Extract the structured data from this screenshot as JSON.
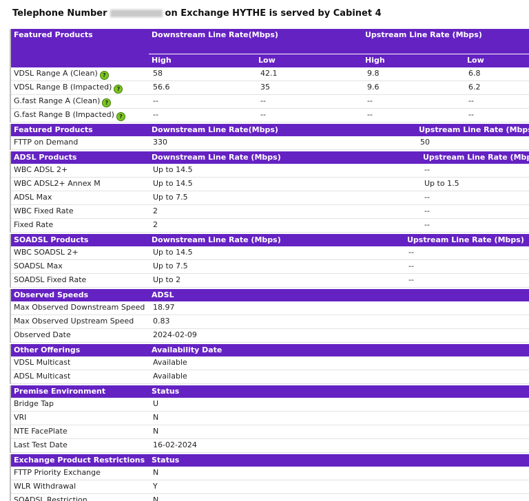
{
  "title": {
    "prefix": "Telephone Number",
    "suffix": "on Exchange HYTHE is served by Cabinet 4"
  },
  "sections": [
    {
      "header": [
        "Featured Products",
        "Downstream Line Rate(Mbps)",
        "Upstream Line Rate (Mbps)"
      ],
      "subheader": [
        "High",
        "Low",
        "High",
        "Low"
      ],
      "rows": [
        [
          "VDSL Range A (Clean)",
          "58",
          "42.1",
          "9.8",
          "6.8"
        ],
        [
          "VDSL Range B (Impacted)",
          "56.6",
          "35",
          "9.6",
          "6.2"
        ],
        [
          "G.fast Range A (Clean)",
          "--",
          "--",
          "--",
          "--"
        ],
        [
          "G.fast Range B (Impacted)",
          "--",
          "--",
          "--",
          "--"
        ]
      ]
    },
    {
      "header": [
        "Featured Products",
        "Downstream Line Rate(Mbps)",
        "Upstream Line Rate (Mbps)"
      ],
      "rows": [
        [
          "FTTP on Demand",
          "330",
          "50"
        ]
      ]
    },
    {
      "header": [
        "ADSL Products",
        "Downstream Line Rate (Mbps)",
        "Upstream Line Rate (Mbps)"
      ],
      "rows": [
        [
          "WBC ADSL 2+",
          "Up to 14.5",
          "--"
        ],
        [
          "WBC ADSL2+ Annex M",
          "Up to 14.5",
          "Up to 1.5"
        ],
        [
          "ADSL Max",
          "Up to 7.5",
          "--"
        ],
        [
          "WBC Fixed Rate",
          "2",
          "--"
        ],
        [
          "Fixed Rate",
          "2",
          "--"
        ]
      ]
    },
    {
      "header": [
        "SOADSL Products",
        "Downstream Line Rate (Mbps)",
        "Upstream Line Rate (Mbps)"
      ],
      "rows": [
        [
          "WBC SOADSL 2+",
          "Up to 14.5",
          "--"
        ],
        [
          "SOADSL Max",
          "Up to 7.5",
          "--"
        ],
        [
          "SOADSL Fixed Rate",
          "Up to 2",
          "--"
        ]
      ]
    },
    {
      "header": [
        "Observed Speeds",
        "ADSL"
      ],
      "rows": [
        [
          "Max Observed Downstream Speed",
          "18.97"
        ],
        [
          "Max Observed Upstream Speed",
          "0.83"
        ],
        [
          "Observed Date",
          "2024-02-09"
        ]
      ]
    },
    {
      "header": [
        "Other Offerings",
        "Availability Date"
      ],
      "rows": [
        [
          "VDSL Multicast",
          "Available"
        ],
        [
          "ADSL Multicast",
          "Available"
        ]
      ]
    },
    {
      "header": [
        "Premise Environment",
        "Status"
      ],
      "rows": [
        [
          "Bridge Tap",
          "U"
        ],
        [
          "VRI",
          "N"
        ],
        [
          "NTE FacePlate",
          "N"
        ],
        [
          "Last Test Date",
          "16-02-2024"
        ]
      ]
    },
    {
      "header": [
        "Exchange Product Restrictions",
        "Status"
      ],
      "rows": [
        [
          "FTTP Priority Exchange",
          "N"
        ],
        [
          "WLR Withdrawal",
          "Y"
        ],
        [
          "SOADSL Restriction",
          "N"
        ]
      ]
    }
  ]
}
